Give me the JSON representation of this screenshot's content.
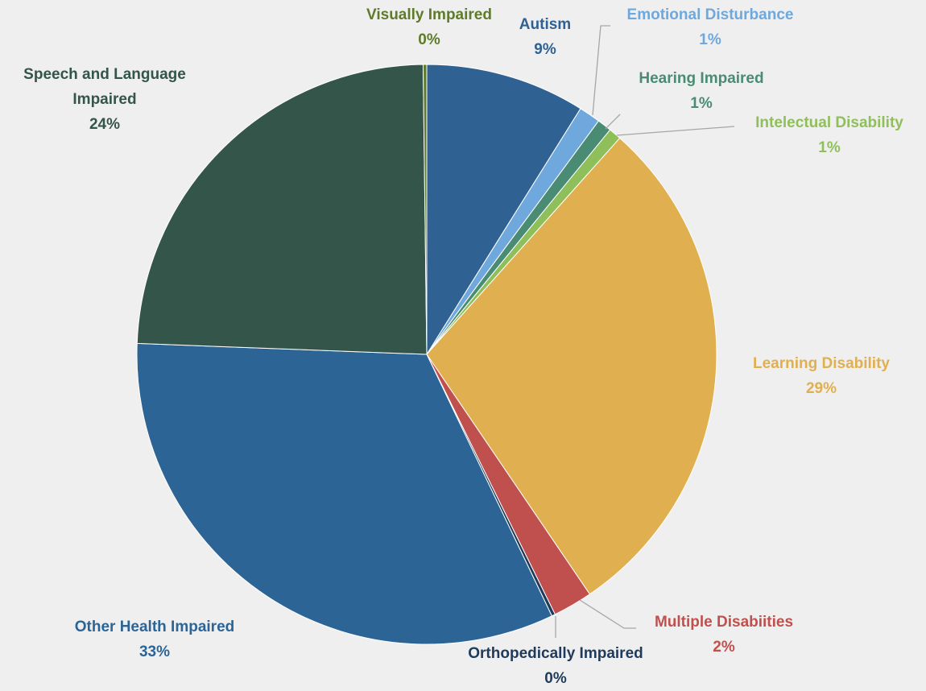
{
  "chart_data": {
    "type": "pie",
    "categories": [
      "Autism",
      "Emotional Disturbance",
      "Hearing Impaired",
      "Intelectual Disability",
      "Learning Disability",
      "Multiple Disabiities",
      "Orthopedically Impaired",
      "Other Health Impaired",
      "Speech and Language Impaired",
      "Visually Impaired"
    ],
    "values": [
      8.9,
      1.2,
      0.8,
      0.7,
      28.9,
      2.2,
      0.2,
      32.7,
      24.2,
      0.2
    ],
    "value_labels": [
      "9%",
      "1%",
      "1%",
      "1%",
      "29%",
      "2%",
      "0%",
      "33%",
      "24%",
      "0%"
    ],
    "colors": [
      "#2f6192",
      "#6fa8dc",
      "#4a8c73",
      "#8fbf5a",
      "#e0b050",
      "#c0504d",
      "#1f3a5a",
      "#2d6496",
      "#33554a",
      "#5f7a2a"
    ]
  }
}
